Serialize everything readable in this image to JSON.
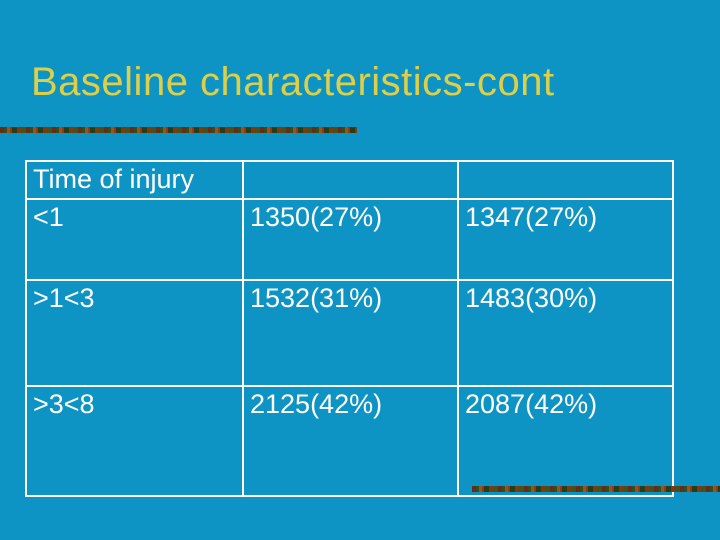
{
  "slide": {
    "title": "Baseline characteristics-cont"
  },
  "colors": {
    "background": "#0E94C4",
    "title_text": "#DECF48",
    "table_border": "#FFFFFF",
    "table_text": "#FFFFFF",
    "accent_dark_red": "#6B2A14",
    "accent_dark_green": "#3A4A1C",
    "accent_brown": "#8A5A1E"
  },
  "table": {
    "header": {
      "col1": "Time of injury",
      "col2": "",
      "col3": ""
    },
    "rows": [
      {
        "label": "<1",
        "value1": "1350(27%)",
        "value2": "1347(27%)"
      },
      {
        "label": ">1<3",
        "value1": "1532(31%)",
        "value2": "1483(30%)"
      },
      {
        "label": ">3<8",
        "value1": "2125(42%)",
        "value2": "2087(42%)"
      }
    ]
  }
}
